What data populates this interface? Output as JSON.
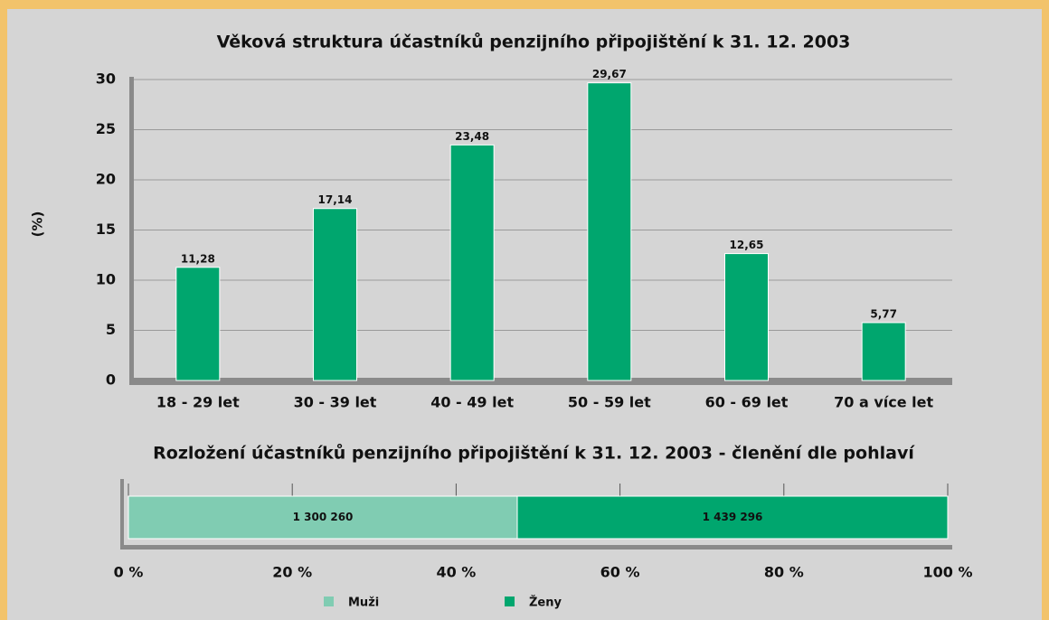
{
  "chart_data": [
    {
      "type": "bar",
      "title": "Věková struktura účastníků penzijního připojištění k 31. 12. 2003",
      "y_label": "(%)",
      "categories": [
        "18 - 29 let",
        "30 - 39 let",
        "40 - 49 let",
        "50 - 59 let",
        "60 - 69 let",
        "70 a více let"
      ],
      "values": [
        11.28,
        17.14,
        23.48,
        29.67,
        12.65,
        5.77
      ],
      "value_labels": [
        "11,28",
        "17,14",
        "23,48",
        "29,67",
        "12,65",
        "5,77"
      ],
      "color": "#00a66e",
      "ylim": [
        0,
        30
      ],
      "yticks": [
        0,
        5,
        10,
        15,
        20,
        25,
        30
      ],
      "grid": true
    },
    {
      "type": "stacked_percent_bar",
      "title": "Rozložení účastníků penzijního připojištění k 31. 12. 2003 - členění dle pohlaví",
      "series": [
        {
          "name": "Muži",
          "color": "#80ccb2",
          "values": [
            1300260
          ],
          "value_labels": [
            "1 300 260"
          ]
        },
        {
          "name": "Ženy",
          "color": "#00a66e",
          "values": [
            1439296
          ],
          "value_labels": [
            "1 439 296"
          ]
        }
      ],
      "xlim": [
        0,
        100
      ],
      "xticks": [
        {
          "value": 0,
          "label": "0 %"
        },
        {
          "value": 20,
          "label": "20 %"
        },
        {
          "value": 40,
          "label": "40 %"
        },
        {
          "value": 60,
          "label": "60 %"
        },
        {
          "value": 80,
          "label": "80 %"
        },
        {
          "value": 100,
          "label": "100 %"
        }
      ],
      "grid": true,
      "legend": "bottom"
    }
  ]
}
